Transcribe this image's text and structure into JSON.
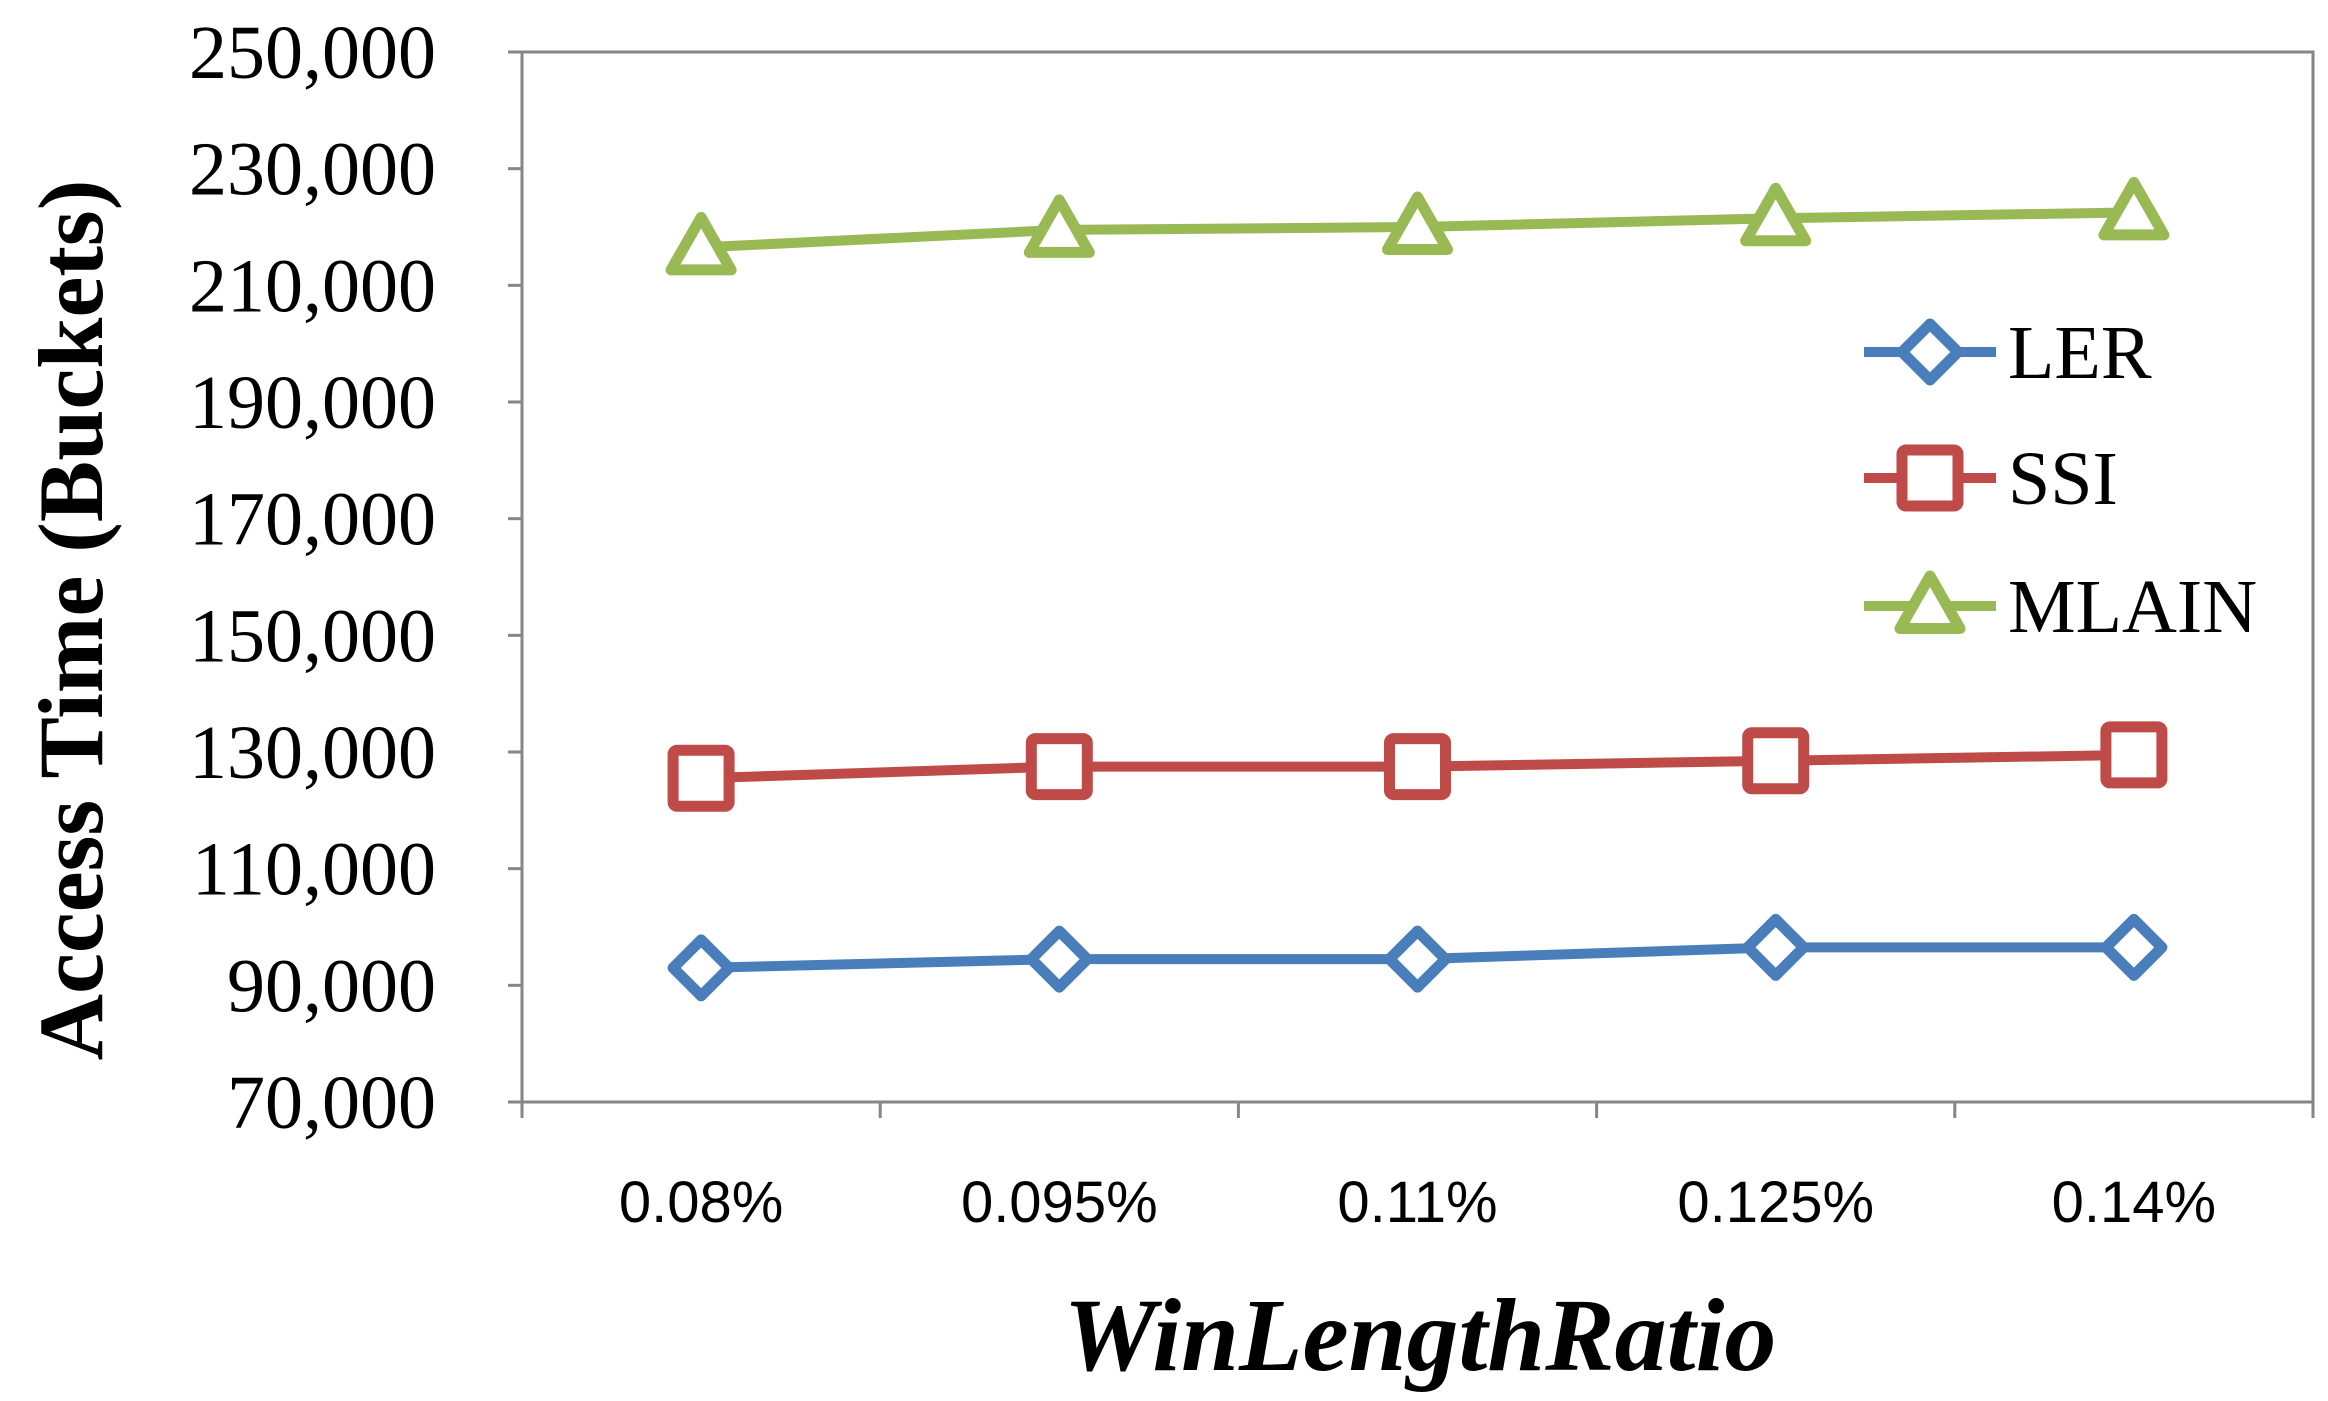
{
  "chart_data": {
    "type": "line",
    "xlabel": "WinLengthRatio",
    "ylabel": "Access Time (Buckets)",
    "categories": [
      "0.08%",
      "0.095%",
      "0.11%",
      "0.125%",
      "0.14%"
    ],
    "ylim": [
      70000,
      250000
    ],
    "yticks": [
      "70,000",
      "90,000",
      "110,000",
      "130,000",
      "150,000",
      "170,000",
      "190,000",
      "210,000",
      "230,000",
      "250,000"
    ],
    "grid": false,
    "legend_position": "right",
    "series": [
      {
        "name": "LER",
        "marker": "diamond",
        "color": "#4a7ebb",
        "values": [
          93000,
          94500,
          94500,
          96500,
          96500
        ]
      },
      {
        "name": "SSI",
        "marker": "square",
        "color": "#be4b48",
        "values": [
          125500,
          127500,
          127500,
          128500,
          129500
        ]
      },
      {
        "name": "MLAIN",
        "marker": "triangle",
        "color": "#98b954",
        "values": [
          216500,
          219500,
          220000,
          221500,
          222500
        ]
      }
    ]
  }
}
